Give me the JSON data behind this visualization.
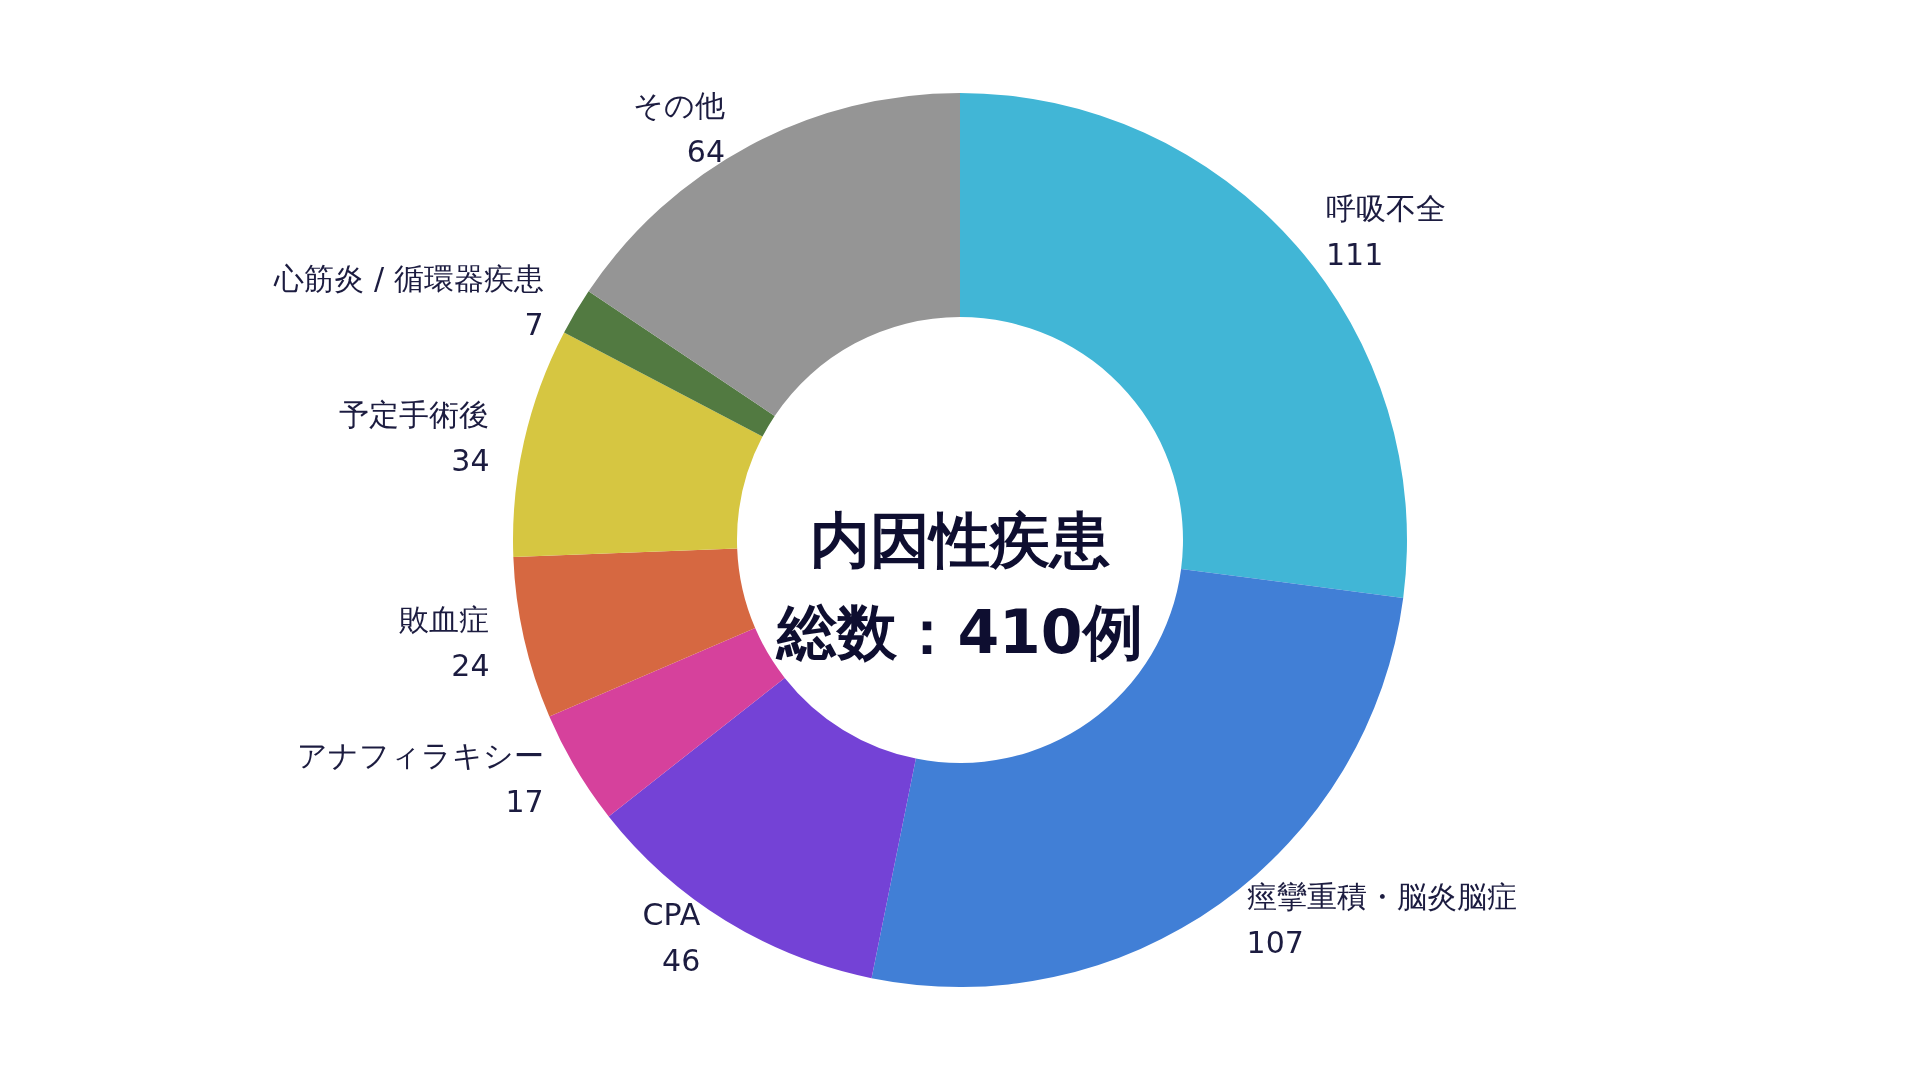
{
  "chart_data": {
    "type": "donut",
    "title": "内因性疾患",
    "subtitle": "総数：410例",
    "categories": [
      "呼吸不全",
      "痙攣重積・脳炎脳症",
      "CPA",
      "アナフィラキシー",
      "敗血症",
      "予定手術後",
      "心筋炎 / 循環器疾患",
      "その他"
    ],
    "values": [
      111,
      107,
      46,
      17,
      24,
      34,
      7,
      64
    ],
    "colors": [
      "#41b6d6",
      "#417fd6",
      "#7442d6",
      "#d6419c",
      "#d66841",
      "#d6c641",
      "#527a41",
      "#959595"
    ],
    "data_labels": true,
    "legend": false
  }
}
